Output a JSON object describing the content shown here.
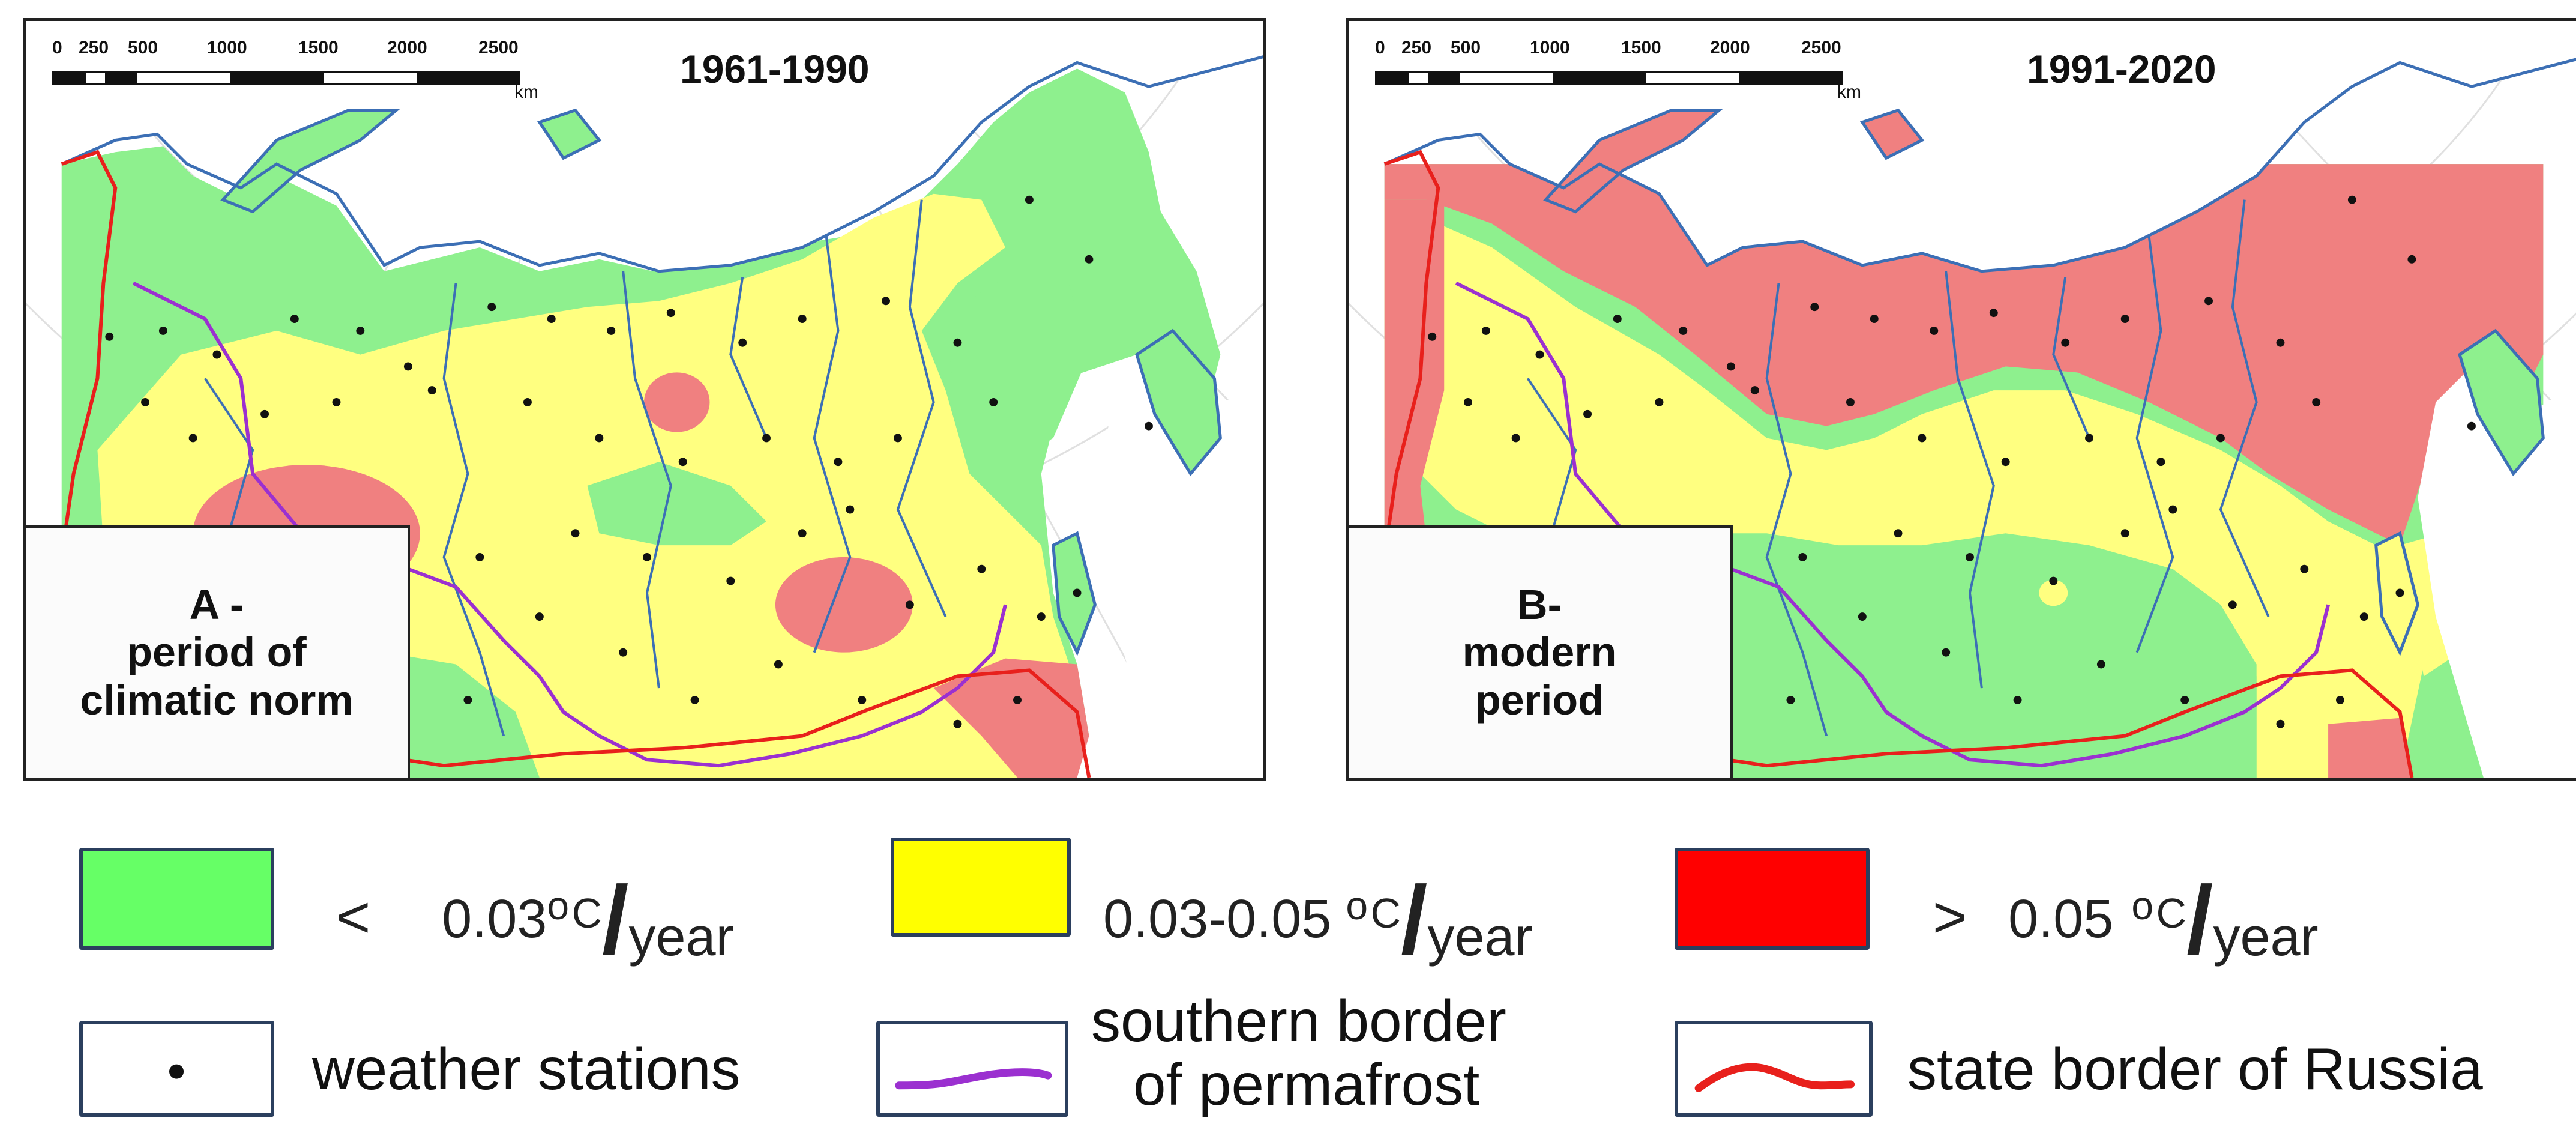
{
  "maps": {
    "a": {
      "period": "1961-1990",
      "caption_line1": "A -",
      "caption_line2": "period of",
      "caption_line3": "climatic norm"
    },
    "b": {
      "period": "1991-2020",
      "caption_line1": "B-",
      "caption_line2": "modern",
      "caption_line3": "period"
    }
  },
  "scale_bar": {
    "ticks": [
      "0",
      "250",
      "500",
      "1000",
      "1500",
      "2000",
      "2500"
    ],
    "unit": "km"
  },
  "legend": {
    "low": {
      "operator": "<",
      "value": "0.03",
      "degree": "o",
      "unit_c": "C",
      "unit_year": "year",
      "color": "#66ff66"
    },
    "mid": {
      "value": "0.03-0.05",
      "degree": "o",
      "unit_c": "C",
      "unit_year": "year",
      "color": "#ffff00"
    },
    "high": {
      "operator": ">",
      "value": "0.05",
      "degree": "o",
      "unit_c": "C",
      "unit_year": "year",
      "color": "#ff0000"
    },
    "stations_label": "weather stations",
    "permafrost_label_line1": "southern border",
    "permafrost_label_line2": "of permafrost",
    "permafrost_color": "#9b30d0",
    "state_border_label": "state border of Russia",
    "state_border_color": "#e8201c"
  },
  "colors": {
    "map_green": "#8ef08e",
    "map_yellow": "#ffff80",
    "map_red": "#f08080",
    "river": "#3c6fb5",
    "coast": "#3c6fb5",
    "graticule": "#e2e2e2"
  }
}
